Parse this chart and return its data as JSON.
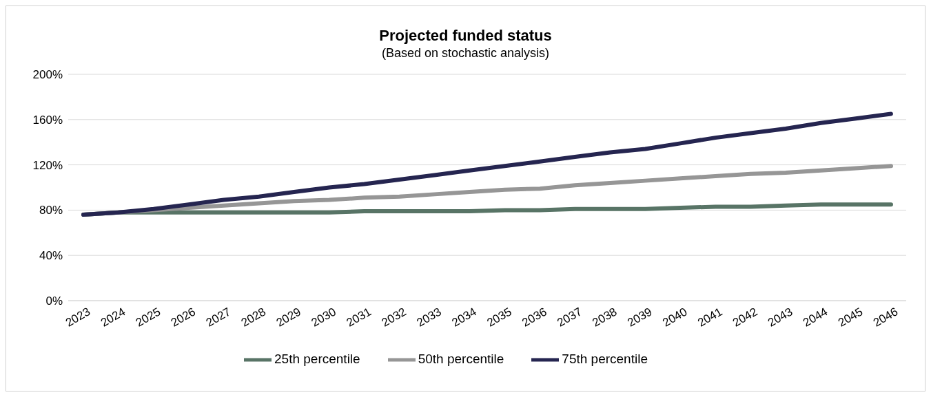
{
  "chart_data": {
    "type": "line",
    "title": "Projected funded status",
    "subtitle": "(Based on stochastic analysis)",
    "categories": [
      "2023",
      "2024",
      "2025",
      "2026",
      "2027",
      "2028",
      "2029",
      "2030",
      "2031",
      "2032",
      "2033",
      "2034",
      "2035",
      "2036",
      "2037",
      "2038",
      "2039",
      "2040",
      "2041",
      "2042",
      "2043",
      "2044",
      "2045",
      "2046"
    ],
    "series": [
      {
        "name": "25th percentile",
        "color": "#587466",
        "values": [
          76,
          78,
          78,
          78,
          78,
          78,
          78,
          78,
          79,
          79,
          79,
          79,
          80,
          80,
          81,
          81,
          81,
          82,
          83,
          83,
          84,
          85,
          85,
          85
        ]
      },
      {
        "name": "50th percentile",
        "color": "#969696",
        "values": [
          76,
          78,
          80,
          82,
          84,
          86,
          88,
          89,
          91,
          92,
          94,
          96,
          98,
          99,
          102,
          104,
          106,
          108,
          110,
          112,
          113,
          115,
          117,
          119
        ]
      },
      {
        "name": "75th percentile",
        "color": "#252550",
        "values": [
          76,
          78,
          81,
          85,
          89,
          92,
          96,
          100,
          103,
          107,
          111,
          115,
          119,
          123,
          127,
          131,
          134,
          139,
          144,
          148,
          152,
          157,
          161,
          165
        ]
      }
    ],
    "ylim": [
      0,
      200
    ],
    "yticks": [
      {
        "value": 0,
        "label": "0%"
      },
      {
        "value": 40,
        "label": "40%"
      },
      {
        "value": 80,
        "label": "80%"
      },
      {
        "value": 120,
        "label": "120%"
      },
      {
        "value": 160,
        "label": "160%"
      },
      {
        "value": 200,
        "label": "200%"
      }
    ],
    "grid": "y",
    "legend": "bottom",
    "marker": "none",
    "line_style": "solid"
  }
}
